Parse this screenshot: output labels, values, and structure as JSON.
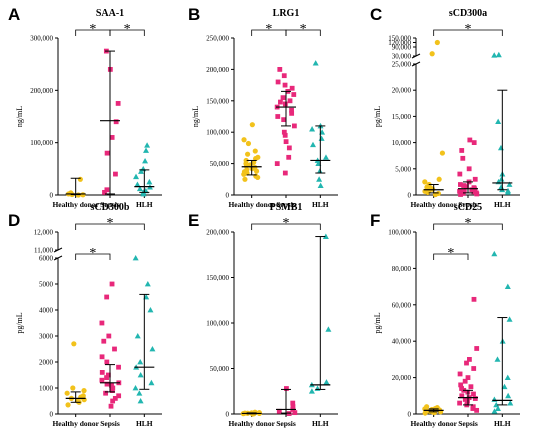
{
  "colors": {
    "yellow": "#f2c21b",
    "pink": "#e8287a",
    "teal": "#22b6b0"
  },
  "categories": [
    "Healthy donor",
    "Sepsis",
    "HLH"
  ],
  "chart_data": [
    {
      "type": "scatter",
      "letter": "A",
      "title": "SAA-1",
      "ylabel": "ng/mL",
      "ylim": [
        0,
        300000
      ],
      "ticks": [
        {
          "v": 0,
          "label": "0"
        },
        {
          "v": 100000,
          "label": "100,000"
        },
        {
          "v": 200000,
          "label": "200,000"
        },
        {
          "v": 300000,
          "label": "300,000"
        }
      ],
      "series": [
        {
          "values": [
            0,
            500,
            1000,
            2000,
            4000,
            30000
          ],
          "median": 2000,
          "q1": 800,
          "q3": 32000
        },
        {
          "values": [
            5000,
            10000,
            40000,
            80000,
            110000,
            140000,
            175000,
            240000,
            275000
          ],
          "median": 142000,
          "q1": 2000,
          "q3": 275000
        },
        {
          "values": [
            2000,
            5000,
            8000,
            12000,
            15000,
            20000,
            25000,
            35000,
            45000,
            50000,
            65000,
            85000,
            95000
          ],
          "median": 16000,
          "q1": 5000,
          "q3": 48000
        }
      ],
      "sig": [
        [
          0,
          1
        ],
        [
          1,
          2
        ]
      ]
    },
    {
      "type": "scatter",
      "letter": "B",
      "title": "LRG1",
      "ylabel": "ng/mL",
      "ylim": [
        0,
        250000
      ],
      "ticks": [
        {
          "v": 0,
          "label": "0"
        },
        {
          "v": 50000,
          "label": "50,000"
        },
        {
          "v": 100000,
          "label": "100,000"
        },
        {
          "v": 150000,
          "label": "150,000"
        },
        {
          "v": 200000,
          "label": "200,000"
        },
        {
          "v": 250000,
          "label": "250,000"
        }
      ],
      "series": [
        {
          "values": [
            25000,
            28000,
            30000,
            33000,
            35000,
            37000,
            38000,
            40000,
            42000,
            44000,
            46000,
            48000,
            50000,
            52000,
            55000,
            58000,
            60000,
            65000,
            70000,
            82000,
            88000,
            112000
          ],
          "median": 45000,
          "q1": 32000,
          "q3": 55000
        },
        {
          "values": [
            35000,
            50000,
            60000,
            75000,
            85000,
            95000,
            100000,
            110000,
            120000,
            125000,
            130000,
            135000,
            140000,
            145000,
            148000,
            150000,
            155000,
            160000,
            165000,
            170000,
            175000,
            180000,
            190000,
            200000
          ],
          "median": 140000,
          "q1": 110000,
          "q3": 165000
        },
        {
          "values": [
            15000,
            25000,
            38000,
            50000,
            55000,
            60000,
            80000,
            90000,
            100000,
            105000,
            110000,
            210000
          ],
          "median": 55000,
          "q1": 35000,
          "q3": 110000
        }
      ],
      "sig": [
        [
          0,
          1
        ],
        [
          1,
          2
        ]
      ]
    },
    {
      "type": "scatter",
      "letter": "C",
      "title": "sCD300a",
      "ylabel": "pg/mL",
      "ylim": [
        0,
        25000
      ],
      "break": {
        "from": 25000,
        "to": 30000,
        "top": 150000
      },
      "ticks": [
        {
          "v": 0,
          "label": "0"
        },
        {
          "v": 5000,
          "label": "5,000"
        },
        {
          "v": 10000,
          "label": "10,000"
        },
        {
          "v": 15000,
          "label": "15,000"
        },
        {
          "v": 20000,
          "label": "20,000"
        },
        {
          "v": 25000,
          "label": "25,000"
        },
        {
          "v": 30000,
          "label": "30,000"
        },
        {
          "v": 90000,
          "label": "90,000"
        },
        {
          "v": 120000,
          "label": "120,000"
        },
        {
          "v": 150000,
          "label": "150,000"
        }
      ],
      "series": [
        {
          "values": [
            100,
            300,
            500,
            700,
            900,
            1100,
            1300,
            1500,
            2000,
            2500,
            3000,
            8000,
            45000,
            120000
          ],
          "median": 1000,
          "q1": 400,
          "q3": 2000
        },
        {
          "values": [
            100,
            200,
            300,
            400,
            500,
            600,
            700,
            800,
            900,
            1000,
            1200,
            1400,
            1600,
            1800,
            2000,
            2500,
            3000,
            4000,
            5000,
            7000,
            8500,
            10000,
            10500
          ],
          "median": 1200,
          "q1": 400,
          "q3": 2500
        },
        {
          "values": [
            500,
            800,
            1000,
            1500,
            2000,
            2500,
            3000,
            4000,
            9000,
            14000,
            35000,
            38000
          ],
          "median": 2300,
          "q1": 1000,
          "q3": 20000
        }
      ],
      "sig": [
        [
          0,
          2
        ]
      ]
    },
    {
      "type": "scatter",
      "letter": "D",
      "title": "sCD300b",
      "ylabel": "pg/mL",
      "ylim": [
        0,
        6000
      ],
      "break": {
        "from": 6000,
        "to": 11000,
        "top": 12000
      },
      "ticks": [
        {
          "v": 0,
          "label": "0"
        },
        {
          "v": 1000,
          "label": "1000"
        },
        {
          "v": 2000,
          "label": "2000"
        },
        {
          "v": 3000,
          "label": "3000"
        },
        {
          "v": 4000,
          "label": "4000"
        },
        {
          "v": 5000,
          "label": "5000"
        },
        {
          "v": 6000,
          "label": "6000"
        },
        {
          "v": 11000,
          "label": "11,000"
        },
        {
          "v": 12000,
          "label": "12,000"
        }
      ],
      "series": [
        {
          "values": [
            350,
            450,
            500,
            550,
            600,
            650,
            700,
            800,
            900,
            1000,
            2700
          ],
          "median": 600,
          "q1": 450,
          "q3": 850
        },
        {
          "values": [
            300,
            500,
            600,
            700,
            800,
            900,
            1000,
            1100,
            1150,
            1200,
            1300,
            1400,
            1500,
            1600,
            1800,
            2000,
            2200,
            2500,
            2800,
            3000,
            3500,
            4500,
            5000
          ],
          "median": 1200,
          "q1": 850,
          "q3": 1900
        },
        {
          "values": [
            500,
            800,
            1000,
            1200,
            1500,
            1800,
            2000,
            2500,
            3000,
            4000,
            4500,
            5000,
            6000
          ],
          "median": 1800,
          "q1": 950,
          "q3": 4600
        }
      ],
      "sig": [
        [
          0,
          1
        ],
        [
          0,
          2
        ]
      ]
    },
    {
      "type": "scatter",
      "letter": "E",
      "title": "PSMB1",
      "ylabel": "",
      "ylim": [
        0,
        200000
      ],
      "ticks": [
        {
          "v": 0,
          "label": "0"
        },
        {
          "v": 50000,
          "label": "50,000"
        },
        {
          "v": 100000,
          "label": "100,000"
        },
        {
          "v": 150000,
          "label": "150,000"
        },
        {
          "v": 200000,
          "label": "200,000"
        }
      ],
      "series": [
        {
          "values": [
            0,
            200,
            400,
            600,
            800,
            1000,
            1200,
            1500,
            2000
          ],
          "median": 600,
          "q1": 200,
          "q3": 1200
        },
        {
          "values": [
            500,
            1500,
            3000,
            5000,
            8000,
            12000,
            28000
          ],
          "median": 5000,
          "q1": 1000,
          "q3": 27000
        },
        {
          "values": [
            25000,
            28000,
            32000,
            35000,
            93000,
            195000
          ],
          "median": 32000,
          "q1": 27000,
          "q3": 195000
        }
      ],
      "sig": [
        [
          0,
          2
        ]
      ]
    },
    {
      "type": "scatter",
      "letter": "F",
      "title": "sCD25",
      "ylabel": "pg/mL",
      "ylim": [
        0,
        100000
      ],
      "ticks": [
        {
          "v": 0,
          "label": "0"
        },
        {
          "v": 20000,
          "label": "20,000"
        },
        {
          "v": 40000,
          "label": "40,000"
        },
        {
          "v": 60000,
          "label": "60,000"
        },
        {
          "v": 80000,
          "label": "80,000"
        },
        {
          "v": 100000,
          "label": "100,000"
        }
      ],
      "series": [
        {
          "values": [
            500,
            800,
            1000,
            1200,
            1500,
            1700,
            2000,
            2200,
            2500,
            2800,
            3000,
            3500,
            4000
          ],
          "median": 2000,
          "q1": 1200,
          "q3": 2800
        },
        {
          "values": [
            2000,
            3000,
            4000,
            5000,
            6000,
            7000,
            8000,
            8500,
            9000,
            10000,
            11000,
            12000,
            13000,
            14000,
            15000,
            16000,
            18000,
            20000,
            22000,
            25000,
            28000,
            30000,
            36000,
            63000
          ],
          "median": 9000,
          "q1": 5000,
          "q3": 13000
        },
        {
          "values": [
            1500,
            3000,
            5000,
            6000,
            8000,
            10000,
            15000,
            20000,
            30000,
            40000,
            52000,
            70000,
            88000
          ],
          "median": 7500,
          "q1": 5000,
          "q3": 53000
        }
      ],
      "sig": [
        [
          0,
          1
        ],
        [
          0,
          2
        ]
      ]
    }
  ]
}
